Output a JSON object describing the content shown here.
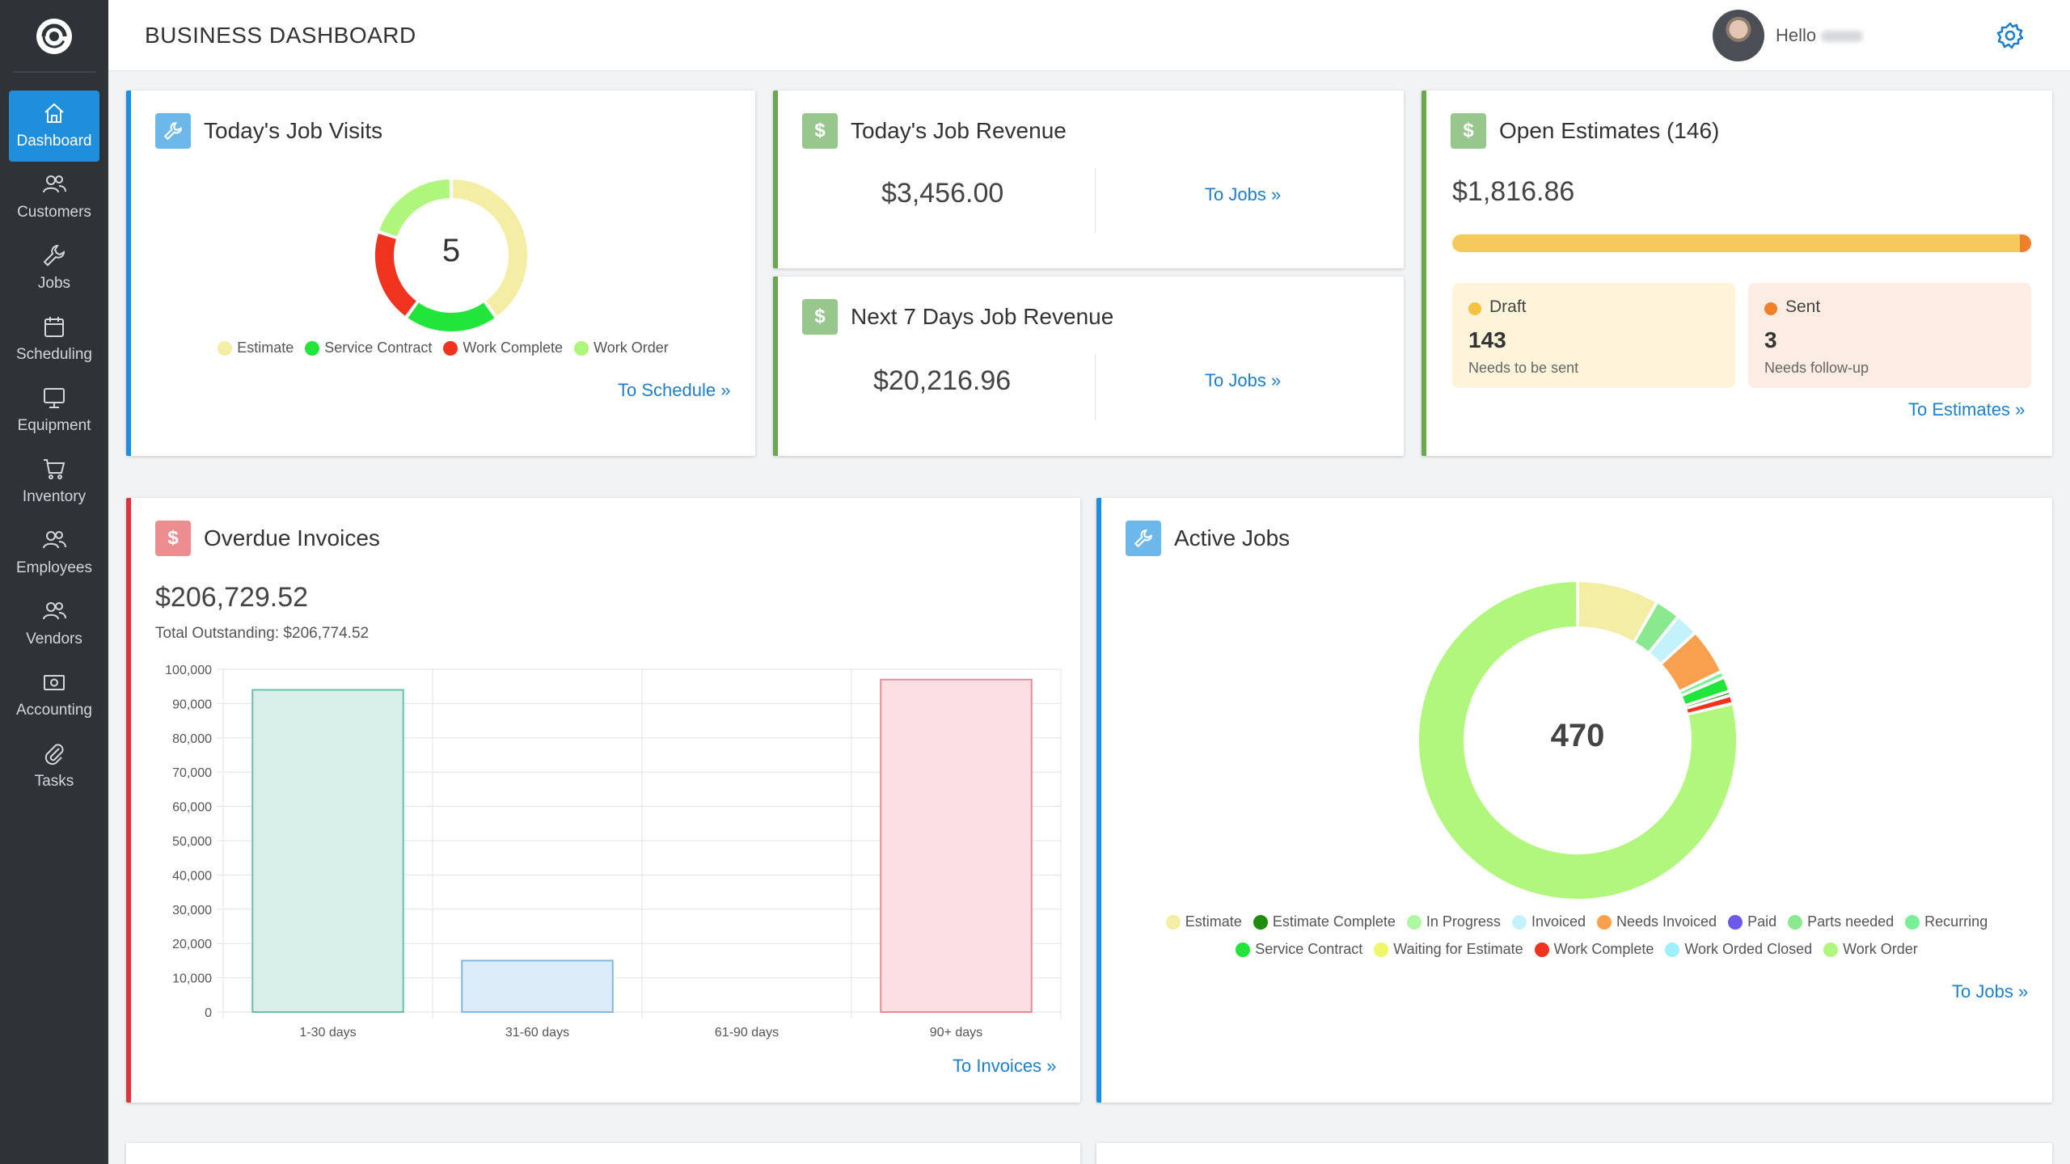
{
  "header": {
    "title": "BUSINESS DASHBOARD",
    "hello": "Hello"
  },
  "sidebar": {
    "items": [
      {
        "label": "Dashboard",
        "icon": "home-icon"
      },
      {
        "label": "Customers",
        "icon": "users-icon"
      },
      {
        "label": "Jobs",
        "icon": "wrench-icon"
      },
      {
        "label": "Scheduling",
        "icon": "calendar-icon"
      },
      {
        "label": "Equipment",
        "icon": "monitor-icon"
      },
      {
        "label": "Inventory",
        "icon": "cart-icon"
      },
      {
        "label": "Employees",
        "icon": "users-icon"
      },
      {
        "label": "Vendors",
        "icon": "users-icon"
      },
      {
        "label": "Accounting",
        "icon": "cash-icon"
      },
      {
        "label": "Tasks",
        "icon": "paperclip-icon"
      }
    ]
  },
  "job_visits": {
    "title": "Today's Job Visits",
    "total": "5",
    "link": "To Schedule",
    "legend": [
      {
        "name": "Estimate",
        "color": "#f4eea4"
      },
      {
        "name": "Service Contract",
        "color": "#22e53c"
      },
      {
        "name": "Work Complete",
        "color": "#f0331e"
      },
      {
        "name": "Work Order",
        "color": "#aef77c"
      }
    ]
  },
  "todays_revenue": {
    "title": "Today's Job Revenue",
    "amount": "$3,456.00",
    "link": "To Jobs"
  },
  "next7_revenue": {
    "title": "Next 7 Days Job Revenue",
    "amount": "$20,216.96",
    "link": "To Jobs"
  },
  "open_estimates": {
    "title": "Open Estimates (146)",
    "amount": "$1,816.86",
    "progress_fraction": 0.98,
    "bar_color": "#f5c95a",
    "end_color": "#f07f2a",
    "draft": {
      "label": "Draft",
      "count": "143",
      "sub": "Needs to be sent",
      "dot": "#f5c341",
      "bg": "#fdf4da"
    },
    "sent": {
      "label": "Sent",
      "count": "3",
      "sub": "Needs follow-up",
      "dot": "#f07f2a",
      "bg": "#fdece2"
    },
    "link": "To Estimates"
  },
  "overdue": {
    "title": "Overdue Invoices",
    "amount": "$206,729.52",
    "total_label": "Total Outstanding: $206,774.52",
    "link": "To Invoices"
  },
  "active_jobs": {
    "title": "Active Jobs",
    "total": "470",
    "link": "To Jobs",
    "legend_row1": [
      {
        "name": "Estimate",
        "color": "#f4eea4"
      },
      {
        "name": "Estimate Complete",
        "color": "#1f8c0e"
      },
      {
        "name": "In Progress",
        "color": "#aef7a3"
      },
      {
        "name": "Invoiced",
        "color": "#c3f2fb"
      },
      {
        "name": "Needs Invoiced",
        "color": "#f9a04e"
      },
      {
        "name": "Paid",
        "color": "#6b5ae8"
      },
      {
        "name": "Parts needed",
        "color": "#8ae88f"
      },
      {
        "name": "Recurring",
        "color": "#7bee98"
      }
    ],
    "legend_row2": [
      {
        "name": "Service Contract",
        "color": "#22e53c"
      },
      {
        "name": "Waiting for Estimate",
        "color": "#eef76a"
      },
      {
        "name": "Work Complete",
        "color": "#f0331e"
      },
      {
        "name": "Work Orded Closed",
        "color": "#9fefff"
      },
      {
        "name": "Work Order",
        "color": "#b2f77d"
      }
    ]
  },
  "chart_data": [
    {
      "type": "pie",
      "variant": "donut",
      "title": "Today's Job Visits",
      "categories": [
        "Estimate",
        "Service Contract",
        "Work Complete",
        "Work Order"
      ],
      "values": [
        2,
        1,
        1,
        1
      ],
      "colors": [
        "#f4eea4",
        "#22e53c",
        "#f0331e",
        "#aef77c"
      ]
    },
    {
      "type": "bar",
      "title": "Overdue Invoices",
      "categories": [
        "1-30 days",
        "31-60 days",
        "61-90 days",
        "90+ days"
      ],
      "values": [
        94000,
        15000,
        0,
        97000
      ],
      "fills": [
        "#d8efe9",
        "#dcecf9",
        "#fde3e6",
        "#fbdfe3"
      ],
      "strokes": [
        "#6dbfa9",
        "#84b7e3",
        "#e99aa4",
        "#e58c98"
      ],
      "ylim": [
        0,
        100000
      ],
      "yticks": [
        "100,000",
        "90,000",
        "80,000",
        "70,000",
        "60,000",
        "50,000",
        "40,000",
        "30,000",
        "20,000",
        "10,000",
        "0"
      ]
    },
    {
      "type": "pie",
      "variant": "donut",
      "title": "Active Jobs",
      "categories": [
        "Estimate",
        "Parts needed",
        "Invoiced",
        "Needs Invoiced",
        "Recurring",
        "Service Contract",
        "Estimate Complete",
        "Work Complete",
        "Work Order"
      ],
      "values": [
        39,
        12,
        11,
        22,
        3,
        7,
        2,
        4,
        370
      ],
      "colors": [
        "#f4eea4",
        "#8ae88f",
        "#c3f2fb",
        "#f9a04e",
        "#7bee98",
        "#22e53c",
        "#1f8c0e",
        "#f0331e",
        "#b2f77d"
      ]
    }
  ]
}
